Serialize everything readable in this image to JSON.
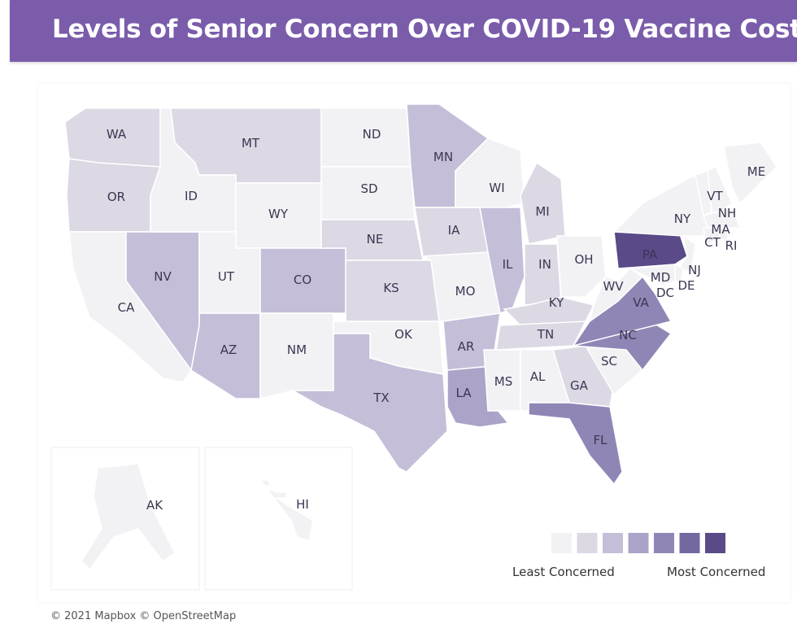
{
  "title": "Levels of Senior Concern Over COVID-19 Vaccine Cost",
  "legend": {
    "low_label": "Least Concerned",
    "high_label": "Most Concerned",
    "colors": [
      "#f2f1f4",
      "#dcd8e4",
      "#c5bed9",
      "#aca3c8",
      "#9086b6",
      "#7468a1",
      "#5a4a88"
    ]
  },
  "attribution": "© 2021 Mapbox © OpenStreetMap",
  "states": {
    "WA": 1,
    "OR": 1,
    "CA": 0,
    "NV": 2,
    "ID": 0,
    "MT": 1,
    "WY": 0,
    "UT": 0,
    "AZ": 2,
    "CO": 2,
    "NM": 0,
    "ND": 0,
    "SD": 0,
    "NE": 1,
    "KS": 1,
    "OK": 0,
    "TX": 2,
    "MN": 2,
    "IA": 1,
    "MO": 0,
    "AR": 2,
    "LA": 3,
    "WI": 0,
    "IL": 2,
    "MI": 1,
    "IN": 1,
    "OH": 0,
    "KY": 1,
    "TN": 1,
    "MS": 0,
    "AL": 0,
    "GA": 1,
    "FL": 4,
    "SC": 0,
    "NC": 4,
    "VA": 4,
    "WV": 0,
    "PA": 6,
    "NY": 0,
    "VT": 0,
    "NH": 0,
    "ME": 0,
    "MA": 0,
    "CT": 0,
    "RI": 0,
    "NJ": 0,
    "DE": 0,
    "MD": 0,
    "DC": 0,
    "AK": 0,
    "HI": 0
  }
}
